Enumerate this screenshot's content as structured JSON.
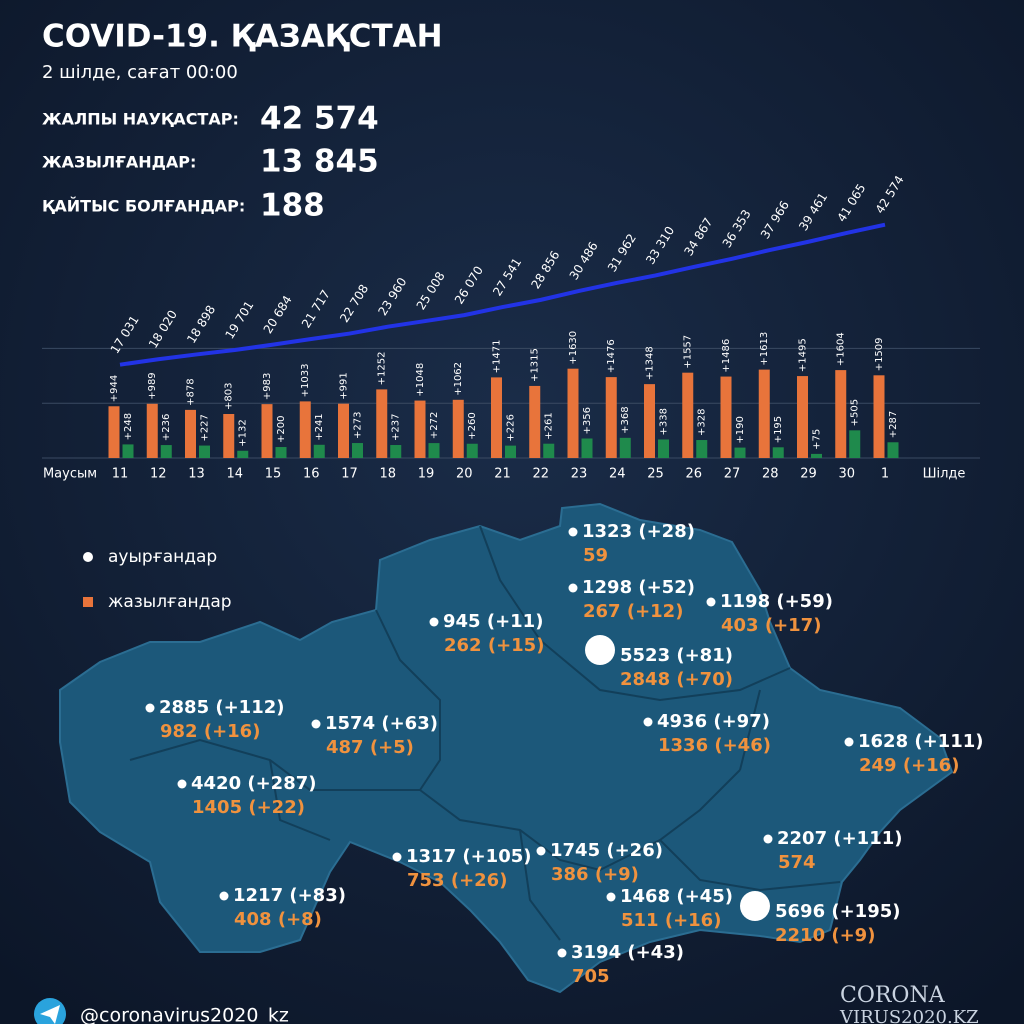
{
  "header": {
    "title": "COVID-19. ҚАЗАҚСТАН",
    "date": "2 шілде, сағат 00:00"
  },
  "stats": [
    {
      "label": "ЖАЛПЫ НАУҚАСТАР:",
      "value": "42 574"
    },
    {
      "label": "ЖАЗЫЛҒАНДАР:",
      "value": "13 845"
    },
    {
      "label": "ҚАЙТЫС БОЛҒАНДАР:",
      "value": "188"
    }
  ],
  "chart_data": {
    "type": "bar",
    "categories": [
      "11",
      "12",
      "13",
      "14",
      "15",
      "16",
      "17",
      "18",
      "19",
      "20",
      "21",
      "22",
      "23",
      "24",
      "25",
      "26",
      "27",
      "28",
      "29",
      "30",
      "1"
    ],
    "axis_start_label": "Маусым",
    "axis_end_label": "Шілде",
    "ylim": [
      0,
      5000
    ],
    "y2lim": [
      0,
      50000
    ],
    "yticks": [
      0,
      1000,
      2000
    ],
    "grid": true,
    "series": [
      {
        "type": "line",
        "axis": "y2",
        "color": "#2233e6",
        "values": [
          17031,
          18020,
          18898,
          19701,
          20684,
          21717,
          22708,
          23960,
          25008,
          26070,
          27541,
          28856,
          30486,
          31962,
          33310,
          34867,
          36353,
          37966,
          39461,
          41065,
          42574
        ],
        "value_labels": [
          "17 031",
          "18 020",
          "18 898",
          "19 701",
          "20 684",
          "21 717",
          "22 708",
          "23 960",
          "25 008",
          "26 070",
          "27 541",
          "28 856",
          "30 486",
          "31 962",
          "33 310",
          "34 867",
          "36 353",
          "37 966",
          "39 461",
          "41 065",
          "42 574"
        ]
      },
      {
        "type": "bar",
        "color": "#e8743b",
        "values": [
          944,
          989,
          878,
          803,
          983,
          1033,
          991,
          1252,
          1048,
          1062,
          1471,
          1315,
          1630,
          1476,
          1348,
          1557,
          1486,
          1613,
          1495,
          1604,
          1509
        ],
        "value_labels": [
          "+944",
          "+989",
          "+878",
          "+803",
          "+983",
          "+1033",
          "+991",
          "+1252",
          "+1048",
          "+1062",
          "+1471",
          "+1315",
          "+1630",
          "+1476",
          "+1348",
          "+1557",
          "+1486",
          "+1613",
          "+1495",
          "+1604",
          "+1509"
        ]
      },
      {
        "type": "bar",
        "color": "#1f8a4c",
        "values": [
          248,
          236,
          227,
          132,
          200,
          241,
          273,
          237,
          272,
          260,
          226,
          261,
          356,
          368,
          338,
          328,
          190,
          195,
          75,
          505,
          287
        ],
        "value_labels": [
          "+248",
          "+236",
          "+227",
          "+132",
          "+200",
          "+241",
          "+273",
          "+237",
          "+272",
          "+260",
          "+226",
          "+261",
          "+356",
          "+368",
          "+338",
          "+328",
          "+190",
          "+195",
          "+75",
          "+505",
          "+287"
        ]
      }
    ]
  },
  "map": {
    "legend": [
      {
        "label": "ауырғандар"
      },
      {
        "label": "жазылғандар"
      }
    ],
    "regions": [
      {
        "cases": "1323 (+28)",
        "recovered": "59"
      },
      {
        "cases": "1298 (+52)",
        "recovered": "267 (+12)"
      },
      {
        "cases": "1198 (+59)",
        "recovered": "403 (+17)"
      },
      {
        "cases": "945 (+11)",
        "recovered": "262 (+15)"
      },
      {
        "cases": "5523 (+81)",
        "recovered": "2848 (+70)"
      },
      {
        "cases": "2885 (+112)",
        "recovered": "982 (+16)"
      },
      {
        "cases": "1574 (+63)",
        "recovered": "487 (+5)"
      },
      {
        "cases": "4936 (+97)",
        "recovered": "1336 (+46)"
      },
      {
        "cases": "1628 (+111)",
        "recovered": "249 (+16)"
      },
      {
        "cases": "4420 (+287)",
        "recovered": "1405 (+22)"
      },
      {
        "cases": "2207 (+111)",
        "recovered": "574"
      },
      {
        "cases": "1317 (+105)",
        "recovered": "753 (+26)"
      },
      {
        "cases": "1745 (+26)",
        "recovered": "386 (+9)"
      },
      {
        "cases": "1468 (+45)",
        "recovered": "511 (+16)"
      },
      {
        "cases": "5696 (+195)",
        "recovered": "2210 (+9)"
      },
      {
        "cases": "1217 (+83)",
        "recovered": "408 (+8)"
      },
      {
        "cases": "3194 (+43)",
        "recovered": "705"
      }
    ]
  },
  "footer": {
    "handle": "@coronavirus2020_kz",
    "logo_top": "CORONA",
    "logo_bottom": "VIRUS2020.KZ"
  }
}
